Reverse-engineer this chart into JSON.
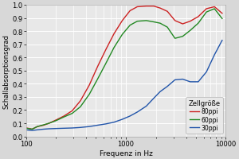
{
  "title": "",
  "xlabel": "Frequenz in Hz",
  "ylabel": "Schallabsorptionsgrad",
  "xlim": [
    100,
    10000
  ],
  "ylim": [
    0.0,
    1.0
  ],
  "yticks": [
    0.0,
    0.1,
    0.2,
    0.3,
    0.4,
    0.5,
    0.6,
    0.7,
    0.8,
    0.9,
    1.0
  ],
  "fig_bg": "#d8d8d8",
  "plot_bg": "#e8e8e8",
  "grid_color": "#ffffff",
  "legend_title": "Zellgröße",
  "series": [
    {
      "label": "80ppi",
      "color": "#cc2222",
      "x": [
        100,
        115,
        130,
        150,
        170,
        200,
        240,
        290,
        350,
        430,
        520,
        630,
        760,
        920,
        1100,
        1300,
        1600,
        1900,
        2200,
        2600,
        3100,
        3700,
        4400,
        5300,
        6400,
        7700,
        9200
      ],
      "y": [
        0.065,
        0.055,
        0.075,
        0.085,
        0.1,
        0.125,
        0.155,
        0.195,
        0.27,
        0.39,
        0.53,
        0.66,
        0.78,
        0.88,
        0.955,
        0.985,
        0.99,
        0.99,
        0.975,
        0.95,
        0.88,
        0.855,
        0.875,
        0.91,
        0.97,
        0.985,
        0.935
      ]
    },
    {
      "label": "60ppi",
      "color": "#228822",
      "x": [
        100,
        115,
        130,
        150,
        170,
        200,
        240,
        290,
        350,
        430,
        520,
        630,
        760,
        920,
        1100,
        1300,
        1600,
        1900,
        2200,
        2600,
        3100,
        3700,
        4400,
        5300,
        6400,
        7700,
        9200
      ],
      "y": [
        0.062,
        0.055,
        0.075,
        0.088,
        0.1,
        0.12,
        0.148,
        0.175,
        0.225,
        0.32,
        0.435,
        0.555,
        0.675,
        0.775,
        0.845,
        0.875,
        0.88,
        0.87,
        0.86,
        0.83,
        0.745,
        0.76,
        0.805,
        0.86,
        0.945,
        0.97,
        0.895
      ]
    },
    {
      "label": "30ppi",
      "color": "#2255aa",
      "x": [
        100,
        115,
        130,
        150,
        170,
        200,
        240,
        290,
        350,
        430,
        520,
        630,
        760,
        920,
        1100,
        1300,
        1600,
        1900,
        2200,
        2600,
        3100,
        3700,
        4400,
        5300,
        6400,
        7700,
        9200
      ],
      "y": [
        0.05,
        0.045,
        0.05,
        0.055,
        0.058,
        0.06,
        0.062,
        0.064,
        0.068,
        0.075,
        0.085,
        0.095,
        0.108,
        0.13,
        0.155,
        0.185,
        0.23,
        0.29,
        0.34,
        0.38,
        0.43,
        0.435,
        0.415,
        0.415,
        0.49,
        0.62,
        0.73
      ]
    }
  ]
}
